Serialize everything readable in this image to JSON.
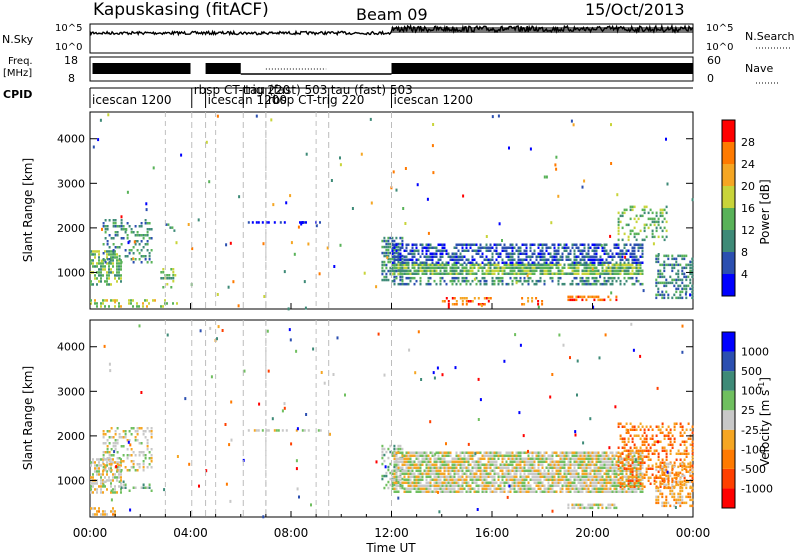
{
  "header": {
    "station": "Kapuskasing (fitACF)",
    "beam": "Beam 09",
    "date": "15/Oct/2013"
  },
  "top_panels": {
    "nsky_label": "N.Sky",
    "nsky_ticks": [
      "10^5",
      "10^0"
    ],
    "nsearch_label": "N.Search",
    "nsearch_ticks": [
      "10^5",
      "10^0"
    ],
    "freq_label_1": "Freq.",
    "freq_label_2": "[MHz]",
    "freq_ticks": [
      "18",
      "8"
    ],
    "nave_label": "Nave",
    "nave_ticks": [
      "60",
      "0"
    ],
    "cpid_label": "CPID",
    "cpid_segments": [
      {
        "label": "icescan 1200",
        "start_h": 0.0
      },
      {
        "label": "rbsp CT-trig 220",
        "start_h": 4.05
      },
      {
        "label": "icescan 1200",
        "start_h": 4.6
      },
      {
        "label": "tau (fast) 503",
        "start_h": 6.1
      },
      {
        "label": "rbsp CT-trig 220",
        "start_h": 7.0
      },
      {
        "label": "tau (fast) 503",
        "start_h": 9.5
      },
      {
        "label": "icescan 1200",
        "start_h": 12.0
      }
    ]
  },
  "chart_data": {
    "type": "heatmap",
    "x_label": "Time UT",
    "x_ticks": [
      "00:00",
      "04:00",
      "08:00",
      "12:00",
      "16:00",
      "20:00",
      "00:00"
    ],
    "x_range_hours": [
      0,
      24
    ],
    "y_label": "Slant Range [km]",
    "y_ticks": [
      "1000",
      "2000",
      "3000",
      "4000"
    ],
    "y_range_km": [
      180,
      4600
    ],
    "power": {
      "colorbar_label": "Power [dB]",
      "colorbar_ticks": [
        "4",
        "8",
        "12",
        "16",
        "20",
        "24",
        "28"
      ],
      "colors": [
        "#0000ff",
        "#2b4fb0",
        "#3e8a77",
        "#58b258",
        "#c8d43a",
        "#f5a623",
        "#ff7a00",
        "#ff0000"
      ],
      "scatter_regions": [
        {
          "t0": 0.0,
          "t1": 1.3,
          "r0": 700,
          "r1": 1500,
          "level": 3,
          "density": 0.6
        },
        {
          "t0": 0.5,
          "t1": 2.5,
          "r0": 1200,
          "r1": 2200,
          "level": 2,
          "density": 0.35
        },
        {
          "t0": 0.0,
          "t1": 3.5,
          "r0": 200,
          "r1": 400,
          "level": 4,
          "density": 0.3
        },
        {
          "t0": 2.8,
          "t1": 3.4,
          "r0": 650,
          "r1": 1100,
          "level": 3,
          "density": 0.5
        },
        {
          "t0": 3.0,
          "t1": 3.4,
          "r0": 1900,
          "r1": 2100,
          "level": 2,
          "density": 0.4
        },
        {
          "t0": 6.2,
          "t1": 7.8,
          "r0": 2050,
          "r1": 2150,
          "level": 0,
          "density": 0.5
        },
        {
          "t0": 8.0,
          "t1": 9.2,
          "r0": 2050,
          "r1": 2150,
          "level": 0,
          "density": 0.5
        },
        {
          "t0": 11.6,
          "t1": 12.5,
          "r0": 800,
          "r1": 1800,
          "level": 2,
          "density": 0.7
        },
        {
          "t0": 12.0,
          "t1": 22.0,
          "r0": 900,
          "r1": 1200,
          "level": 3,
          "density": 0.85
        },
        {
          "t0": 12.0,
          "t1": 22.0,
          "r0": 1200,
          "r1": 1650,
          "level": 1,
          "density": 0.6
        },
        {
          "t0": 12.0,
          "t1": 22.0,
          "r0": 700,
          "r1": 900,
          "level": 2,
          "density": 0.5
        },
        {
          "t0": 14.0,
          "t1": 16.0,
          "r0": 280,
          "r1": 450,
          "level": 6,
          "density": 0.45
        },
        {
          "t0": 17.0,
          "t1": 18.0,
          "r0": 280,
          "r1": 450,
          "level": 6,
          "density": 0.35
        },
        {
          "t0": 19.0,
          "t1": 21.0,
          "r0": 350,
          "r1": 480,
          "level": 6,
          "density": 0.6
        },
        {
          "t0": 21.0,
          "t1": 23.0,
          "r0": 1700,
          "r1": 2500,
          "level": 3,
          "density": 0.35
        },
        {
          "t0": 22.5,
          "t1": 24.0,
          "r0": 400,
          "r1": 1400,
          "level": 2,
          "density": 0.55
        }
      ]
    },
    "velocity": {
      "colorbar_label": "Velocity [m s",
      "colorbar_label_sup": "-1",
      "colorbar_ticks": [
        "1000",
        "500",
        "100",
        "25",
        "-25",
        "-100",
        "-500",
        "-1000"
      ],
      "colors": [
        "#0000ff",
        "#2b4fb0",
        "#3e8a77",
        "#6fbf5f",
        "#c8c8c8",
        "#f5a623",
        "#ff7a00",
        "#ff4000",
        "#ff0000"
      ],
      "scatter_regions": [
        {
          "t0": 0.0,
          "t1": 1.3,
          "r0": 700,
          "r1": 1500,
          "level": 4,
          "density": 0.6
        },
        {
          "t0": 0.5,
          "t1": 2.5,
          "r0": 1200,
          "r1": 2200,
          "level": 4,
          "density": 0.35
        },
        {
          "t0": 0.0,
          "t1": 1.0,
          "r0": 200,
          "r1": 400,
          "level": 5,
          "density": 0.5
        },
        {
          "t0": 0.5,
          "t1": 2.5,
          "r0": 700,
          "r1": 1000,
          "level": 3,
          "density": 0.2
        },
        {
          "t0": 6.2,
          "t1": 9.2,
          "r0": 2050,
          "r1": 2150,
          "level": 4,
          "density": 0.5
        },
        {
          "t0": 11.6,
          "t1": 12.5,
          "r0": 800,
          "r1": 1800,
          "level": 3,
          "density": 0.5
        },
        {
          "t0": 12.0,
          "t1": 22.0,
          "r0": 700,
          "r1": 1650,
          "level": 4,
          "density": 0.85
        },
        {
          "t0": 19.0,
          "t1": 21.0,
          "r0": 350,
          "r1": 480,
          "level": 4,
          "density": 0.6
        },
        {
          "t0": 21.0,
          "t1": 24.0,
          "r0": 800,
          "r1": 2300,
          "level": 6,
          "density": 0.4
        },
        {
          "t0": 22.5,
          "t1": 24.0,
          "r0": 400,
          "r1": 1400,
          "level": 5,
          "density": 0.5
        }
      ]
    }
  }
}
